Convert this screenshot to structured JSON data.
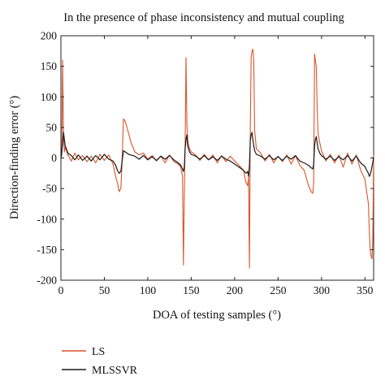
{
  "chart_data": {
    "type": "line",
    "title": "In the presence of phase inconsistency and mutual coupling",
    "xlabel": "DOA of testing samples (°)",
    "ylabel": "Direction-finding error (°)",
    "xlim": [
      0,
      360
    ],
    "ylim": [
      -200,
      200
    ],
    "x_ticks": [
      0,
      50,
      100,
      150,
      200,
      250,
      300,
      350
    ],
    "y_ticks": [
      200,
      150,
      100,
      50,
      0,
      -50,
      -100,
      -150,
      -200
    ],
    "grid": false,
    "legend": "bottom-left, outside plot",
    "colors": {
      "LS": "#d9542a",
      "MLSSVR": "#1a1a1a"
    },
    "series": [
      {
        "name": "LS",
        "x": [
          0,
          1,
          2,
          3,
          4,
          5,
          8,
          12,
          16,
          20,
          25,
          30,
          35,
          40,
          45,
          50,
          55,
          60,
          63,
          65,
          67,
          69,
          70,
          72,
          73,
          74,
          75,
          76,
          77,
          78,
          79,
          80,
          85,
          90,
          95,
          100,
          105,
          110,
          115,
          120,
          125,
          130,
          135,
          138,
          140,
          141,
          142,
          143,
          144,
          145,
          146,
          147,
          148,
          150,
          155,
          160,
          165,
          170,
          175,
          180,
          185,
          190,
          195,
          200,
          205,
          210,
          213,
          215,
          216,
          217,
          218,
          219,
          220,
          221,
          222,
          223,
          224,
          225,
          230,
          235,
          240,
          245,
          250,
          255,
          260,
          265,
          270,
          275,
          280,
          285,
          288,
          290,
          291,
          292,
          293,
          294,
          295,
          296,
          298,
          300,
          305,
          310,
          315,
          320,
          325,
          330,
          335,
          340,
          345,
          350,
          352,
          354,
          355,
          356,
          357,
          358,
          359,
          360
        ],
        "y": [
          0,
          5,
          160,
          35,
          10,
          18,
          5,
          -5,
          8,
          -3,
          4,
          -6,
          3,
          -8,
          6,
          -4,
          5,
          -10,
          -30,
          -40,
          -55,
          -50,
          -20,
          64,
          62,
          60,
          55,
          50,
          45,
          40,
          35,
          28,
          10,
          5,
          8,
          -2,
          4,
          -5,
          3,
          -8,
          5,
          -6,
          -10,
          -15,
          -30,
          -175,
          -60,
          20,
          164,
          55,
          30,
          20,
          15,
          10,
          5,
          -4,
          6,
          -3,
          5,
          -8,
          4,
          -6,
          3,
          -5,
          -12,
          -20,
          -40,
          -45,
          -30,
          -180,
          40,
          165,
          175,
          178,
          160,
          45,
          30,
          15,
          8,
          -5,
          6,
          -8,
          3,
          -6,
          5,
          -10,
          4,
          -12,
          -20,
          -45,
          -55,
          -58,
          -40,
          170,
          160,
          150,
          80,
          40,
          25,
          12,
          -5,
          6,
          -8,
          5,
          -15,
          8,
          -10,
          5,
          -20,
          -35,
          -55,
          -75,
          -120,
          -150,
          -160,
          -165,
          -140,
          5
        ]
      },
      {
        "name": "MLSSVR",
        "x": [
          0,
          1,
          2,
          3,
          4,
          5,
          8,
          12,
          16,
          20,
          25,
          30,
          35,
          40,
          45,
          50,
          55,
          60,
          63,
          65,
          67,
          69,
          70,
          72,
          74,
          76,
          78,
          80,
          85,
          90,
          95,
          100,
          105,
          110,
          115,
          120,
          125,
          130,
          135,
          138,
          140,
          141,
          142,
          143,
          144,
          145,
          146,
          148,
          150,
          155,
          160,
          165,
          170,
          175,
          180,
          185,
          190,
          195,
          200,
          205,
          210,
          213,
          215,
          216,
          217,
          218,
          219,
          220,
          221,
          222,
          223,
          225,
          230,
          235,
          240,
          245,
          250,
          255,
          260,
          265,
          270,
          275,
          280,
          285,
          288,
          290,
          291,
          292,
          293,
          294,
          295,
          296,
          298,
          300,
          305,
          310,
          315,
          320,
          325,
          330,
          335,
          340,
          345,
          350,
          352,
          354,
          355,
          356,
          357,
          358,
          359,
          360
        ],
        "y": [
          0,
          10,
          25,
          42,
          30,
          20,
          8,
          4,
          -3,
          5,
          -4,
          3,
          -5,
          4,
          -3,
          6,
          -2,
          -5,
          -12,
          -20,
          -25,
          -22,
          -10,
          12,
          10,
          8,
          6,
          5,
          3,
          -2,
          4,
          -3,
          2,
          -4,
          3,
          -2,
          4,
          -3,
          -8,
          -12,
          -18,
          -22,
          -15,
          15,
          30,
          38,
          20,
          10,
          6,
          3,
          -2,
          4,
          -3,
          2,
          -4,
          3,
          -2,
          -5,
          -10,
          -15,
          -20,
          -25,
          -22,
          -30,
          -12,
          28,
          38,
          42,
          30,
          20,
          12,
          6,
          3,
          -2,
          4,
          -3,
          2,
          -4,
          3,
          -2,
          4,
          -5,
          -8,
          -12,
          -16,
          -18,
          -10,
          20,
          30,
          35,
          25,
          15,
          8,
          4,
          -2,
          3,
          -4,
          2,
          -3,
          4,
          -5,
          3,
          -8,
          -14,
          -20,
          -25,
          -30,
          -28,
          -22,
          -15,
          -8,
          2
        ]
      }
    ]
  }
}
